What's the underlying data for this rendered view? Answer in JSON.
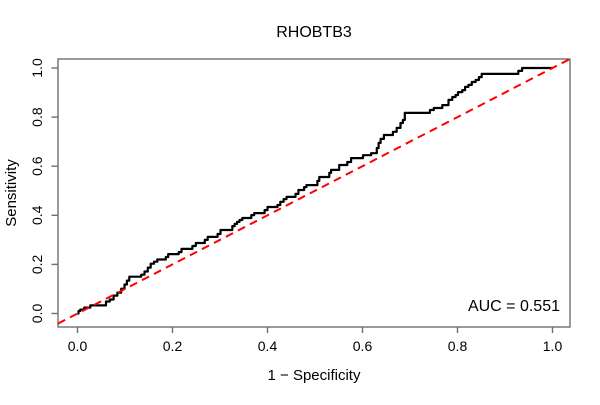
{
  "page": {
    "background": "#ffffff"
  },
  "colors": {
    "roc_curve": "#000000",
    "diagonal": "#ff0000",
    "frame": "#707070",
    "tick": "#707070",
    "text": "#000000"
  },
  "chart_data": {
    "type": "line",
    "subtype": "roc-curve",
    "title": "RHOBTB3",
    "xlabel": "1 − Specificity",
    "ylabel": "Sensitivity",
    "xlim": [
      0,
      1
    ],
    "ylim": [
      0,
      1
    ],
    "grid": false,
    "legend": "none",
    "x_ticks": {
      "values": [
        0,
        0.2,
        0.4,
        0.6,
        0.8,
        1.0
      ],
      "labels": [
        "0.0",
        "0.2",
        "0.4",
        "0.6",
        "0.8",
        "1.0"
      ]
    },
    "y_ticks": {
      "values": [
        0,
        0.2,
        0.4,
        0.6,
        0.8,
        1.0
      ],
      "labels": [
        "0.0",
        "0.2",
        "0.4",
        "0.6",
        "0.8",
        "1.0"
      ]
    },
    "annotation": {
      "text": "AUC = 0.551",
      "position": "bottom-right"
    },
    "auc_value": 0.551,
    "series": [
      {
        "name": "roc-curve",
        "color": "#000000",
        "line_style": "solid",
        "line_width": 2.2,
        "draw": "steps",
        "step_points": [
          [
            0.0,
            0.0
          ],
          [
            0.002,
            0.01
          ],
          [
            0.006,
            0.016
          ],
          [
            0.014,
            0.024
          ],
          [
            0.027,
            0.033
          ],
          [
            0.06,
            0.049
          ],
          [
            0.068,
            0.057
          ],
          [
            0.076,
            0.073
          ],
          [
            0.084,
            0.085
          ],
          [
            0.092,
            0.101
          ],
          [
            0.099,
            0.118
          ],
          [
            0.104,
            0.134
          ],
          [
            0.109,
            0.15
          ],
          [
            0.134,
            0.158
          ],
          [
            0.141,
            0.171
          ],
          [
            0.148,
            0.187
          ],
          [
            0.154,
            0.203
          ],
          [
            0.161,
            0.211
          ],
          [
            0.168,
            0.22
          ],
          [
            0.186,
            0.23
          ],
          [
            0.191,
            0.242
          ],
          [
            0.213,
            0.25
          ],
          [
            0.219,
            0.263
          ],
          [
            0.242,
            0.275
          ],
          [
            0.249,
            0.287
          ],
          [
            0.268,
            0.3
          ],
          [
            0.274,
            0.312
          ],
          [
            0.295,
            0.324
          ],
          [
            0.301,
            0.34
          ],
          [
            0.326,
            0.356
          ],
          [
            0.331,
            0.365
          ],
          [
            0.336,
            0.373
          ],
          [
            0.341,
            0.381
          ],
          [
            0.347,
            0.389
          ],
          [
            0.366,
            0.401
          ],
          [
            0.372,
            0.409
          ],
          [
            0.394,
            0.421
          ],
          [
            0.4,
            0.434
          ],
          [
            0.421,
            0.442
          ],
          [
            0.427,
            0.455
          ],
          [
            0.434,
            0.466
          ],
          [
            0.44,
            0.475
          ],
          [
            0.459,
            0.487
          ],
          [
            0.465,
            0.503
          ],
          [
            0.477,
            0.515
          ],
          [
            0.482,
            0.523
          ],
          [
            0.505,
            0.54
          ],
          [
            0.509,
            0.556
          ],
          [
            0.53,
            0.573
          ],
          [
            0.534,
            0.585
          ],
          [
            0.551,
            0.605
          ],
          [
            0.568,
            0.617
          ],
          [
            0.576,
            0.633
          ],
          [
            0.601,
            0.645
          ],
          [
            0.618,
            0.653
          ],
          [
            0.63,
            0.674
          ],
          [
            0.634,
            0.695
          ],
          [
            0.638,
            0.711
          ],
          [
            0.645,
            0.727
          ],
          [
            0.664,
            0.74
          ],
          [
            0.672,
            0.756
          ],
          [
            0.68,
            0.776
          ],
          [
            0.685,
            0.788
          ],
          [
            0.689,
            0.817
          ],
          [
            0.742,
            0.829
          ],
          [
            0.75,
            0.837
          ],
          [
            0.768,
            0.849
          ],
          [
            0.781,
            0.87
          ],
          [
            0.789,
            0.882
          ],
          [
            0.796,
            0.89
          ],
          [
            0.801,
            0.902
          ],
          [
            0.81,
            0.91
          ],
          [
            0.816,
            0.923
          ],
          [
            0.823,
            0.931
          ],
          [
            0.83,
            0.943
          ],
          [
            0.838,
            0.951
          ],
          [
            0.845,
            0.963
          ],
          [
            0.851,
            0.976
          ],
          [
            0.928,
            0.988
          ],
          [
            0.936,
            1.0
          ],
          [
            1.0,
            1.0
          ]
        ]
      },
      {
        "name": "chance-diagonal",
        "color": "#ff0000",
        "line_style": "dashed",
        "line_width": 2,
        "draw": "line",
        "points": [
          [
            0,
            0
          ],
          [
            1,
            1
          ]
        ]
      }
    ]
  }
}
